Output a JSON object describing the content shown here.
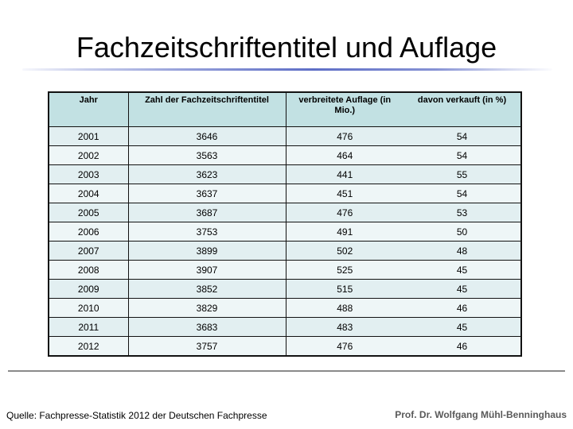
{
  "slide_title": "Fachzeitschriftentitel und Auflage",
  "table": {
    "headers": [
      "Jahr",
      "Zahl der Fachzeitschriftentitel",
      "verbreitete Auflage (in Mio.)",
      "davon verkauft (in %)"
    ],
    "rows": [
      [
        "2001",
        "3646",
        "476",
        "54"
      ],
      [
        "2002",
        "3563",
        "464",
        "54"
      ],
      [
        "2003",
        "3623",
        "441",
        "55"
      ],
      [
        "2004",
        "3637",
        "451",
        "54"
      ],
      [
        "2005",
        "3687",
        "476",
        "53"
      ],
      [
        "2006",
        "3753",
        "491",
        "50"
      ],
      [
        "2007",
        "3899",
        "502",
        "48"
      ],
      [
        "2008",
        "3907",
        "525",
        "45"
      ],
      [
        "2009",
        "3852",
        "515",
        "45"
      ],
      [
        "2010",
        "3829",
        "488",
        "46"
      ],
      [
        "2011",
        "3683",
        "483",
        "45"
      ],
      [
        "2012",
        "3757",
        "476",
        "46"
      ]
    ]
  },
  "chart_data": {
    "type": "table",
    "title": "Fachzeitschriftentitel und Auflage",
    "columns": [
      "Jahr",
      "Zahl der Fachzeitschriftentitel",
      "verbreitete Auflage (in Mio.)",
      "davon verkauft (in %)"
    ],
    "rows": [
      [
        2001,
        3646,
        476,
        54
      ],
      [
        2002,
        3563,
        464,
        54
      ],
      [
        2003,
        3623,
        441,
        55
      ],
      [
        2004,
        3637,
        451,
        54
      ],
      [
        2005,
        3687,
        476,
        53
      ],
      [
        2006,
        3753,
        491,
        50
      ],
      [
        2007,
        3899,
        502,
        48
      ],
      [
        2008,
        3907,
        525,
        45
      ],
      [
        2009,
        3852,
        515,
        45
      ],
      [
        2010,
        3829,
        488,
        46
      ],
      [
        2011,
        3683,
        483,
        45
      ],
      [
        2012,
        3757,
        476,
        46
      ]
    ]
  },
  "footer": {
    "source": "Quelle: Fachpresse-Statistik 2012 der Deutschen Fachpresse",
    "author": "Prof. Dr. Wolfgang Mühl-Benninghaus"
  },
  "colors": {
    "accent_line": "#5e6ec6",
    "table_header_bg": "#c2e1e3",
    "row_band_a": "#e2eff1",
    "row_band_b": "#eef6f7",
    "footer_rule": "#8a8a8a",
    "author_text": "#595959"
  }
}
